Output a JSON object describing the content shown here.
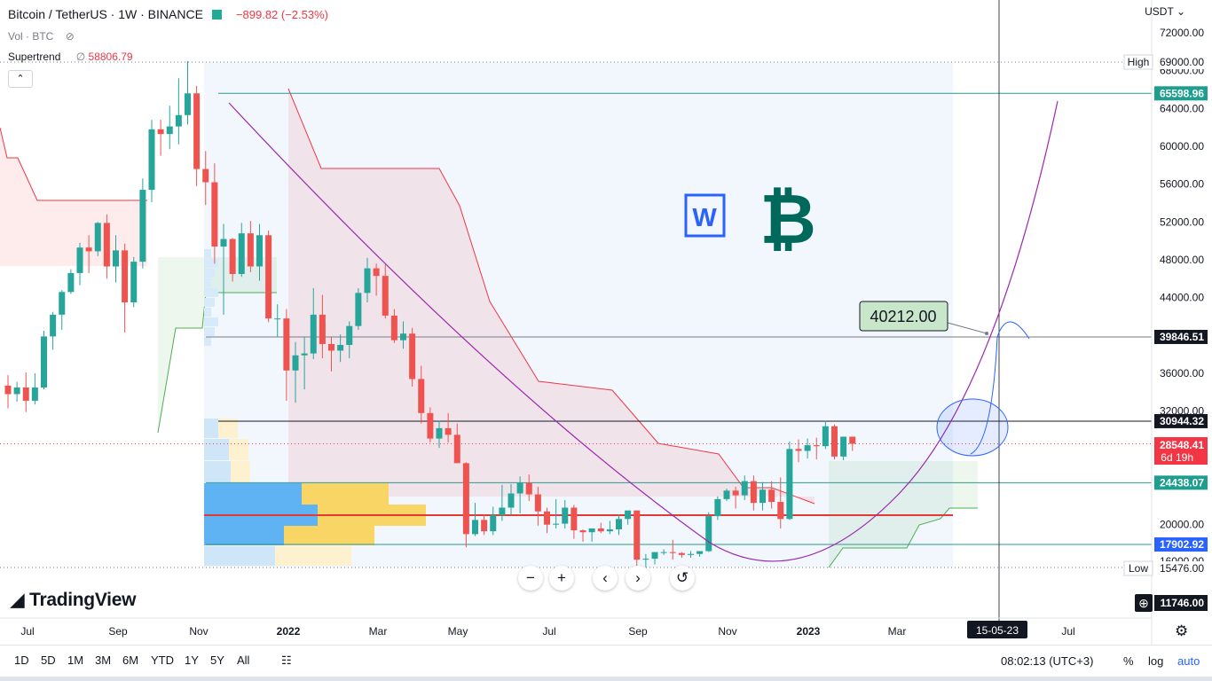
{
  "header": {
    "title": "Bitcoin / TetherUS · 1W · BINANCE",
    "change": "−899.82 (−2.53%)",
    "vol_label": "Vol · BTC",
    "indicator_label": "Supertrend",
    "indicator_value": "58806.79",
    "currency": "USDT"
  },
  "brand": "TradingView",
  "bottom_bar": {
    "ranges": [
      "1D",
      "5D",
      "1M",
      "3M",
      "6M",
      "YTD",
      "1Y",
      "5Y",
      "All"
    ],
    "clock": "08:02:13 (UTC+3)",
    "pct": "%",
    "log": "log",
    "auto": "auto"
  },
  "colors": {
    "up": "#26a69a",
    "down": "#ef5350",
    "line_hl": "#2962ff",
    "trend_up": "#4caf50",
    "trend_down": "#f23645"
  },
  "chart_data": {
    "type": "candlestick",
    "title": "Bitcoin / TetherUS · 1W · BINANCE",
    "y_axis": {
      "ticks": [
        72000,
        68000,
        64000,
        60000,
        56000,
        52000,
        48000,
        44000,
        40000,
        36000,
        32000,
        20000,
        16000
      ],
      "tick_labels": [
        "72000.00",
        "68000.00",
        "64000.00",
        "60000.00",
        "56000.00",
        "52000.00",
        "48000.00",
        "44000.00",
        "40000.00",
        "36000.00",
        "32000.00",
        "20000.00",
        "16000.00"
      ],
      "ylim": [
        13300,
        72500
      ]
    },
    "x_axis": {
      "labels": [
        "Jul",
        "Sep",
        "Nov",
        "2022",
        "Mar",
        "May",
        "Jul",
        "Sep",
        "Nov",
        "2023",
        "Mar",
        "Jul"
      ],
      "cursor_label": "15-05-23"
    },
    "price_labels": [
      {
        "text": "High",
        "value": "69000.00"
      },
      {
        "text": "",
        "value": "65598.96"
      },
      {
        "text": "",
        "value": "39846.51"
      },
      {
        "text": "",
        "value": "30944.32"
      },
      {
        "text": "",
        "value": "28548.41",
        "sub": "6d 19h"
      },
      {
        "text": "",
        "value": "24438.07"
      },
      {
        "text": "",
        "value": "17902.92"
      },
      {
        "text": "Low",
        "value": "15476.00"
      },
      {
        "text": "",
        "value": "11746.00"
      }
    ],
    "annotation": "40212.00",
    "candles": [
      [
        34700,
        35800,
        32300,
        33800
      ],
      [
        33800,
        35100,
        33000,
        34500
      ],
      [
        34500,
        36100,
        31900,
        33100
      ],
      [
        33100,
        36000,
        32700,
        34500
      ],
      [
        34500,
        40500,
        34300,
        39900
      ],
      [
        39900,
        42500,
        38500,
        42200
      ],
      [
        42200,
        44800,
        40600,
        44600
      ],
      [
        44600,
        47000,
        44400,
        46600
      ],
      [
        46600,
        49800,
        45300,
        49300
      ],
      [
        49300,
        50600,
        46600,
        48900
      ],
      [
        48900,
        52000,
        48400,
        51900
      ],
      [
        51900,
        52800,
        46000,
        47300
      ],
      [
        47300,
        50600,
        45600,
        49000
      ],
      [
        49000,
        49700,
        40300,
        43500
      ],
      [
        43500,
        48300,
        43000,
        47800
      ],
      [
        47800,
        56600,
        47100,
        55400
      ],
      [
        55400,
        62800,
        54100,
        61800
      ],
      [
        61800,
        62800,
        59000,
        61300
      ],
      [
        61300,
        64300,
        59700,
        62100
      ],
      [
        62100,
        67200,
        60200,
        63300
      ],
      [
        63300,
        69000,
        62300,
        65600
      ],
      [
        65600,
        66400,
        55800,
        57600
      ],
      [
        57600,
        59500,
        53800,
        56200
      ],
      [
        56200,
        58200,
        47600,
        49400
      ],
      [
        49400,
        51800,
        42200,
        50200
      ],
      [
        50200,
        50300,
        45700,
        46500
      ],
      [
        46500,
        51900,
        46200,
        50800
      ],
      [
        50800,
        52100,
        46700,
        47300
      ],
      [
        47300,
        51800,
        45800,
        50600
      ],
      [
        50600,
        51100,
        41400,
        41800
      ],
      [
        41800,
        43300,
        39800,
        41800
      ],
      [
        41800,
        42800,
        33100,
        36300
      ],
      [
        36300,
        39300,
        32900,
        37900
      ],
      [
        37900,
        39900,
        34300,
        38100
      ],
      [
        38100,
        45000,
        37500,
        42200
      ],
      [
        42200,
        44300,
        37600,
        39100
      ],
      [
        39100,
        39800,
        36200,
        38400
      ],
      [
        38400,
        40100,
        37200,
        39000
      ],
      [
        39000,
        41500,
        37600,
        41000
      ],
      [
        41000,
        45000,
        40600,
        44500
      ],
      [
        44500,
        48200,
        43500,
        47100
      ],
      [
        47100,
        47600,
        44200,
        46300
      ],
      [
        46300,
        47500,
        41800,
        42100
      ],
      [
        42100,
        42800,
        39200,
        39500
      ],
      [
        39500,
        41500,
        38600,
        40200
      ],
      [
        40200,
        40800,
        34600,
        35400
      ],
      [
        35400,
        36800,
        30700,
        31800
      ],
      [
        31800,
        32400,
        28700,
        29100
      ],
      [
        29100,
        31000,
        28100,
        30200
      ],
      [
        30200,
        31800,
        28700,
        29500
      ],
      [
        29500,
        30700,
        26700,
        26500
      ],
      [
        26500,
        26600,
        17600,
        19000
      ],
      [
        19000,
        22300,
        18800,
        20500
      ],
      [
        20500,
        21100,
        18900,
        19300
      ],
      [
        19300,
        21900,
        18900,
        21000
      ],
      [
        21000,
        24200,
        20400,
        21800
      ],
      [
        21800,
        24300,
        21000,
        23300
      ],
      [
        23300,
        25100,
        21200,
        24400
      ],
      [
        24400,
        25300,
        22500,
        23200
      ],
      [
        23200,
        24000,
        19900,
        21400
      ],
      [
        21400,
        21800,
        19100,
        20000
      ],
      [
        20000,
        22700,
        19600,
        20100
      ],
      [
        20100,
        22600,
        19600,
        21800
      ],
      [
        21800,
        22100,
        18500,
        19400
      ],
      [
        19400,
        19500,
        18200,
        19200
      ],
      [
        19200,
        19500,
        18200,
        19600
      ],
      [
        19600,
        20200,
        19100,
        19300
      ],
      [
        19300,
        20400,
        19000,
        19500
      ],
      [
        19500,
        21100,
        18900,
        20600
      ],
      [
        20600,
        21000,
        20000,
        21500
      ],
      [
        21500,
        21500,
        15500,
        16300
      ],
      [
        16300,
        16900,
        15500,
        16400
      ],
      [
        16400,
        17100,
        15800,
        17100
      ],
      [
        17100,
        17400,
        16800,
        17100
      ],
      [
        17100,
        18400,
        16300,
        17000
      ],
      [
        17000,
        17100,
        16500,
        16800
      ],
      [
        16800,
        17200,
        16500,
        16900
      ],
      [
        16900,
        17100,
        16600,
        17200
      ],
      [
        17200,
        21300,
        17100,
        20900
      ],
      [
        20900,
        23000,
        20500,
        22700
      ],
      [
        22700,
        23800,
        22500,
        23600
      ],
      [
        23600,
        24000,
        21700,
        23100
      ],
      [
        23100,
        25200,
        22600,
        24600
      ],
      [
        24600,
        25200,
        21500,
        22300
      ],
      [
        22300,
        24500,
        21500,
        23700
      ],
      [
        23700,
        24600,
        21700,
        22400
      ],
      [
        22400,
        25000,
        19600,
        20600
      ],
      [
        20600,
        28800,
        20500,
        28000
      ],
      [
        28000,
        29000,
        26600,
        27800
      ],
      [
        27800,
        29100,
        27000,
        28400
      ],
      [
        28400,
        29200,
        26900,
        28300
      ],
      [
        28300,
        31000,
        28000,
        30400
      ],
      [
        30400,
        30600,
        26900,
        27200
      ],
      [
        27200,
        29200,
        26800,
        29300
      ],
      [
        29300,
        29300,
        27800,
        28548
      ]
    ],
    "series": [
      {
        "name": "Supertrend",
        "value": "58806.79"
      },
      {
        "name": "Vol · BTC"
      }
    ],
    "horizontal_levels": [
      65598.96,
      39846.51,
      30944.32,
      24438.07,
      21000,
      17902.92
    ],
    "volume_profile_poc": 21000
  }
}
